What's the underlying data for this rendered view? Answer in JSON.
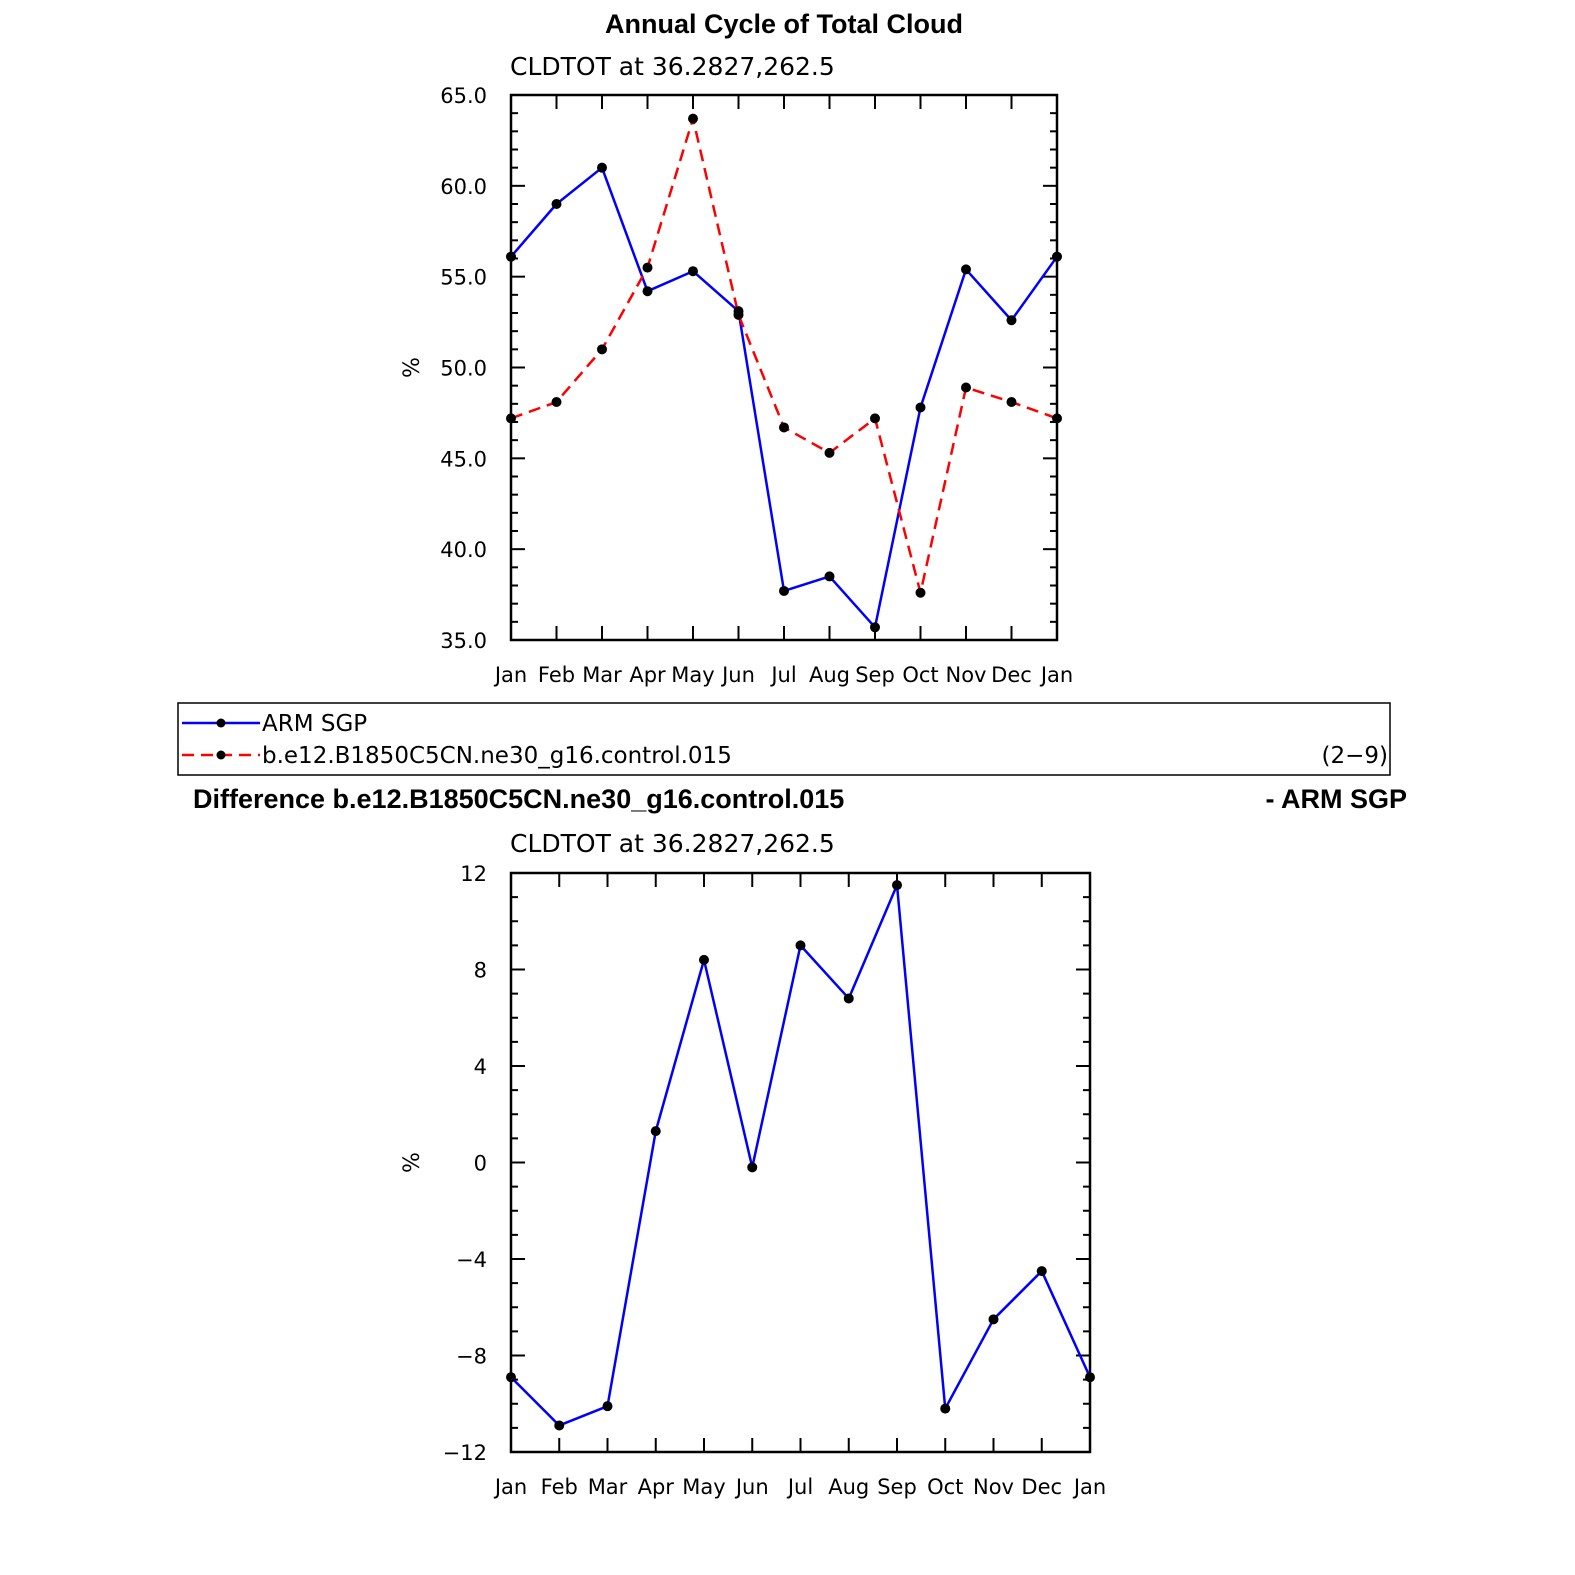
{
  "chart_data": [
    {
      "type": "line",
      "title": "Annual Cycle of Total Cloud",
      "subtitle": "CLDTOT at 36.2827,262.5",
      "ylabel": "%",
      "ylim": [
        35.0,
        65.0
      ],
      "yticks": [
        "65.0",
        "60.0",
        "55.0",
        "50.0",
        "45.0",
        "40.0",
        "35.0"
      ],
      "ytick_values": [
        65,
        60,
        55,
        50,
        45,
        40,
        35
      ],
      "categories": [
        "Jan",
        "Feb",
        "Mar",
        "Apr",
        "May",
        "Jun",
        "Jul",
        "Aug",
        "Sep",
        "Oct",
        "Nov",
        "Dec",
        "Jan"
      ],
      "series": [
        {
          "name": "ARM SGP",
          "color": "#0000ff",
          "dash": "solid",
          "values": [
            56.1,
            59.0,
            61.0,
            54.2,
            55.3,
            53.1,
            37.7,
            38.5,
            35.7,
            47.8,
            55.4,
            52.6,
            56.1
          ]
        },
        {
          "name": "b.e12.B1850C5CN.ne30_g16.control.015",
          "color": "#ff0000",
          "dash": "dashed",
          "values": [
            47.2,
            48.1,
            51.0,
            55.5,
            63.7,
            52.9,
            46.7,
            45.3,
            47.2,
            37.6,
            48.9,
            48.1,
            47.2
          ]
        }
      ],
      "legend_note": "(2−9)"
    },
    {
      "type": "line",
      "title": "Difference b.e12.B1850C5CN.ne30_g16.control.015",
      "title_right": "- ARM SGP",
      "subtitle": "CLDTOT at 36.2827,262.5",
      "ylabel": "%",
      "ylim": [
        -12,
        12
      ],
      "yticks": [
        "12",
        "8",
        "4",
        "0",
        "−4",
        "−8",
        "−12"
      ],
      "ytick_values": [
        12,
        8,
        4,
        0,
        -4,
        -8,
        -12
      ],
      "categories": [
        "Jan",
        "Feb",
        "Mar",
        "Apr",
        "May",
        "Jun",
        "Jul",
        "Aug",
        "Sep",
        "Oct",
        "Nov",
        "Dec",
        "Jan"
      ],
      "series": [
        {
          "color": "#0000ff",
          "dash": "solid",
          "values": [
            -8.9,
            -10.9,
            -10.1,
            1.3,
            8.4,
            -0.2,
            9.0,
            6.8,
            11.5,
            -10.2,
            -6.5,
            -4.5,
            -8.9
          ]
        }
      ]
    }
  ]
}
